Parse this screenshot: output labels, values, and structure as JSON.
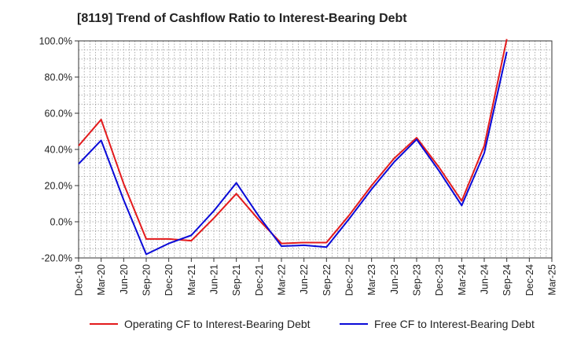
{
  "chart_data": {
    "type": "line",
    "title": "[8119]  Trend of Cashflow Ratio to Interest-Bearing Debt",
    "xlabel": "",
    "ylabel": "",
    "categories": [
      "Dec-19",
      "Mar-20",
      "Jun-20",
      "Sep-20",
      "Dec-20",
      "Mar-21",
      "Jun-21",
      "Sep-21",
      "Dec-21",
      "Mar-22",
      "Jun-22",
      "Sep-22",
      "Dec-22",
      "Mar-23",
      "Jun-23",
      "Sep-23",
      "Dec-23",
      "Mar-24",
      "Jun-24",
      "Sep-24",
      "Dec-24",
      "Mar-25"
    ],
    "ylim": [
      -20,
      100
    ],
    "yticks": [
      -20,
      0,
      20,
      40,
      60,
      80,
      100
    ],
    "ytick_labels": [
      "-20.0%",
      "0.0%",
      "20.0%",
      "40.0%",
      "60.0%",
      "80.0%",
      "100.0%"
    ],
    "grid": true,
    "legend_position": "bottom",
    "series": [
      {
        "name": "Operating CF to Interest-Bearing Debt",
        "color": "#e31a1c",
        "values": [
          42.0,
          56.5,
          21.0,
          -9.5,
          -9.5,
          -10.5,
          2.0,
          15.5,
          1.0,
          -12.0,
          -11.5,
          -11.5,
          3.5,
          20.0,
          35.0,
          46.5,
          30.0,
          11.5,
          42.0,
          101.0,
          null,
          null
        ]
      },
      {
        "name": "Free CF to Interest-Bearing Debt",
        "color": "#0a0ad8",
        "values": [
          32.0,
          45.0,
          12.0,
          -18.0,
          -12.0,
          -7.5,
          6.0,
          21.5,
          3.0,
          -13.5,
          -13.0,
          -14.0,
          1.5,
          18.0,
          33.0,
          45.5,
          28.0,
          9.0,
          38.0,
          94.0,
          null,
          null
        ]
      }
    ]
  }
}
